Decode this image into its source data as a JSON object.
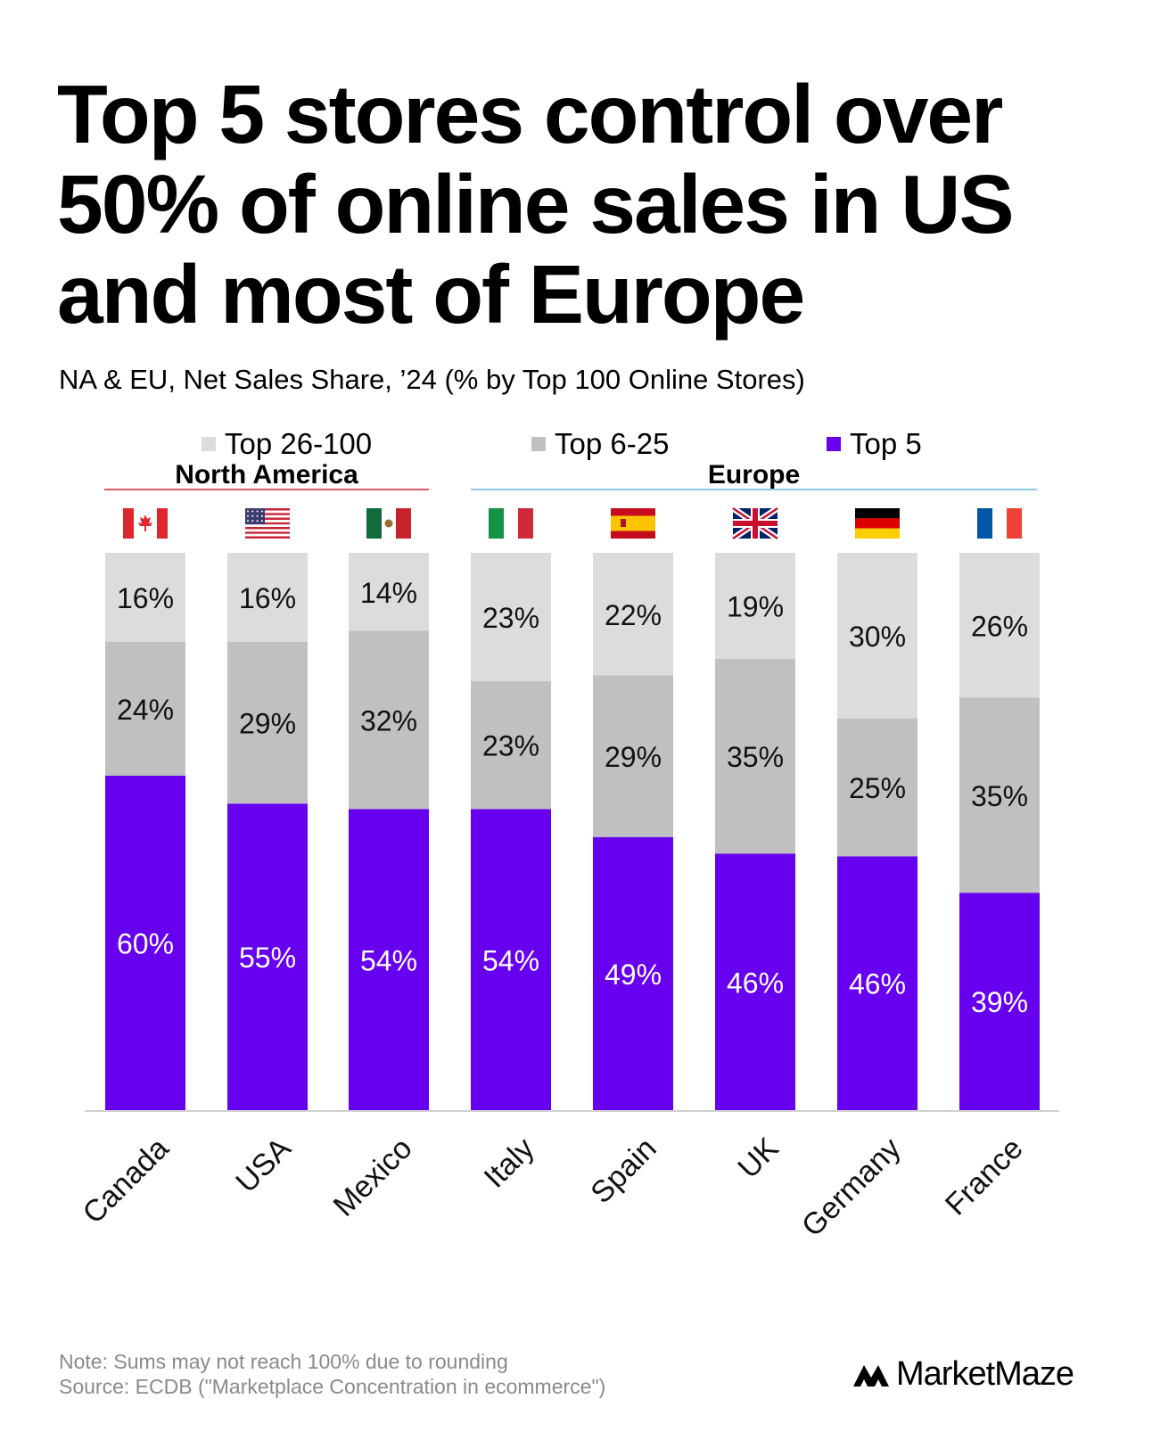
{
  "title_lines": [
    "Top 5 stores control over",
    "50% of online sales in US",
    "and most of Europe"
  ],
  "subtitle": "NA & EU, Net Sales Share, ’24 (% by Top 100 Online Stores)",
  "colors": {
    "top5": "#6600ee",
    "top6_25": "#c0c0c0",
    "top26_100": "#dcdcdc",
    "na_line": "#e05a66",
    "eu_line": "#8ec9e6"
  },
  "footer": {
    "note": "Note: Sums may not reach 100% due to rounding",
    "source": "Source: ECDB (\"Marketplace Concentration in ecommerce\")"
  },
  "brand": "MarketMaze",
  "chart_data": {
    "type": "bar",
    "stacked": true,
    "ylim": [
      0,
      100
    ],
    "grid": false,
    "legend_position": "top",
    "categories": [
      "Canada",
      "USA",
      "Mexico",
      "Italy",
      "Spain",
      "UK",
      "Germany",
      "France"
    ],
    "groups": [
      {
        "name": "North America",
        "categories": [
          "Canada",
          "USA",
          "Mexico"
        ]
      },
      {
        "name": "Europe",
        "categories": [
          "Italy",
          "Spain",
          "UK",
          "Germany",
          "France"
        ]
      }
    ],
    "flags": [
      "canada-flag",
      "usa-flag",
      "mexico-flag",
      "italy-flag",
      "spain-flag",
      "uk-flag",
      "germany-flag",
      "france-flag"
    ],
    "series": [
      {
        "name": "Top 5",
        "values": [
          60,
          55,
          54,
          54,
          49,
          46,
          46,
          39
        ],
        "labels": [
          "60%",
          "55%",
          "54%",
          "54%",
          "49%",
          "46%",
          "46%",
          "39%"
        ]
      },
      {
        "name": "Top 6-25",
        "values": [
          24,
          29,
          32,
          23,
          29,
          35,
          25,
          35
        ],
        "labels": [
          "24%",
          "29%",
          "32%",
          "23%",
          "29%",
          "35%",
          "25%",
          "35%"
        ]
      },
      {
        "name": "Top 26-100",
        "values": [
          16,
          16,
          14,
          23,
          22,
          19,
          30,
          26
        ],
        "labels": [
          "16%",
          "16%",
          "14%",
          "23%",
          "22%",
          "19%",
          "30%",
          "26%"
        ]
      }
    ],
    "legend_order": [
      "Top 26-100",
      "Top 6-25",
      "Top 5"
    ]
  }
}
